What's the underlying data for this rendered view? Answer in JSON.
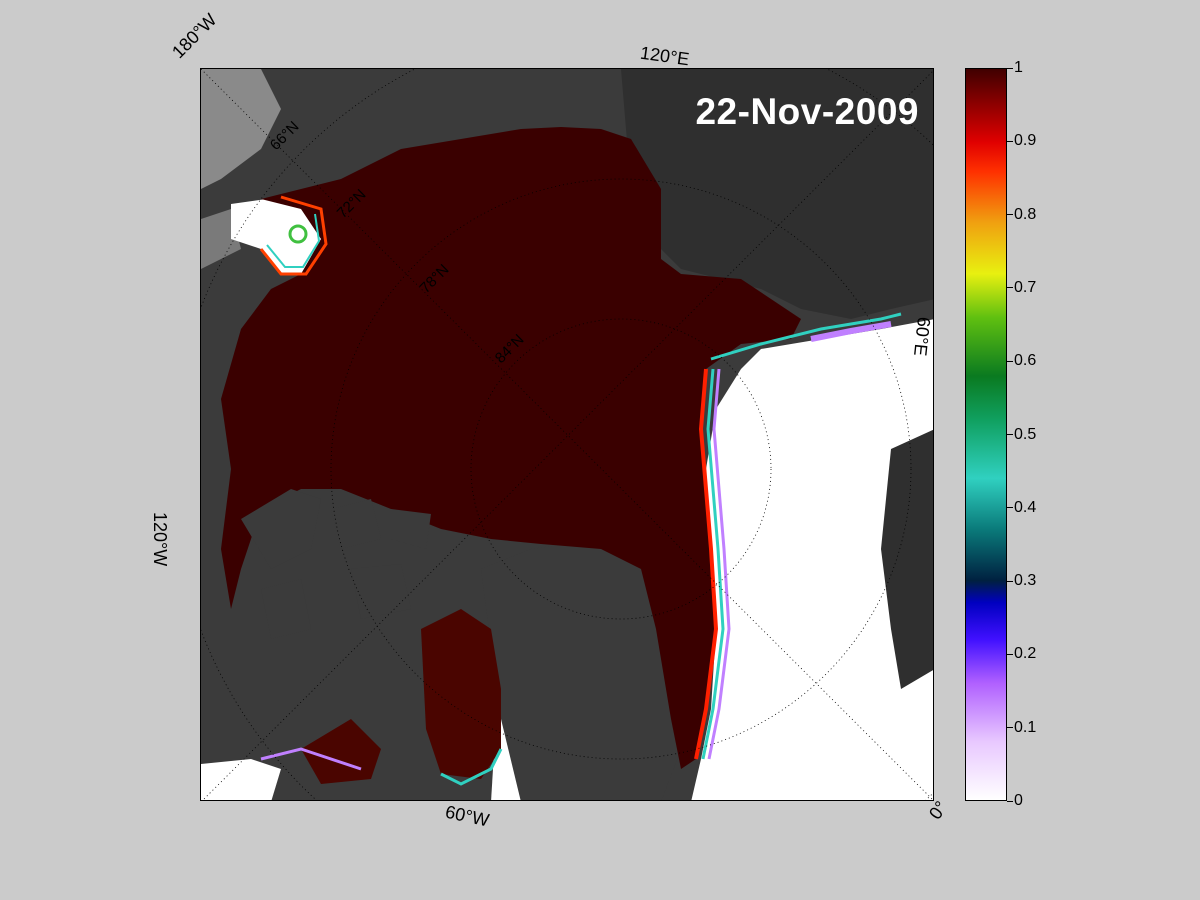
{
  "map": {
    "date_label": "22-Nov-2009",
    "longitude_labels": {
      "lon_180w": "180°W",
      "lon_120e": "120°E",
      "lon_60e": "60°E",
      "lon_120w": "120°W",
      "lon_60w": "60°W",
      "lon_0": "0°"
    },
    "latitude_labels": [
      "66°N",
      "72°N",
      "78°N",
      "84°N"
    ]
  },
  "colorbar": {
    "ticks": [
      "0",
      "0.1",
      "0.2",
      "0.3",
      "0.4",
      "0.5",
      "0.6",
      "0.7",
      "0.8",
      "0.9",
      "1"
    ],
    "range": [
      0,
      1
    ]
  },
  "colors": {
    "figure_background": "#cbcbcb",
    "land": "#3b3b3b",
    "ocean_open_water": "#ffffff",
    "full_ice": "#3a0000"
  }
}
